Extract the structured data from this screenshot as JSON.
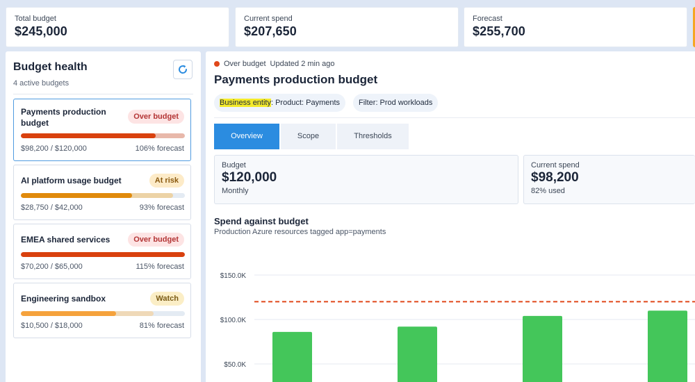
{
  "kpis": [
    {
      "label": "Total budget",
      "value": "$245,000"
    },
    {
      "label": "Current spend",
      "value": "$207,650"
    },
    {
      "label": "Forecast",
      "value": "$255,700"
    }
  ],
  "budget_health": {
    "title": "Budget health",
    "subtitle": "4 active budgets",
    "refresh_icon": "refresh-icon",
    "items": [
      {
        "name_line1": "Payments production",
        "name_line2": "budget",
        "badge": "Over budget",
        "badge_type": "over",
        "amount": "$98,200 / $120,000",
        "forecast": "106% forecast",
        "progress": 0.82,
        "forecast_progress": 1.0,
        "fill_color": "#d9410e",
        "forecast_color": "#e8b8aa"
      },
      {
        "name_line1": "AI platform usage budget",
        "name_line2": "",
        "badge": "At risk",
        "badge_type": "risk",
        "amount": "$28,750 / $42,000",
        "forecast": "93% forecast",
        "progress": 0.68,
        "forecast_progress": 0.93,
        "fill_color": "#e08a0c",
        "forecast_color": "#ecd3a6"
      },
      {
        "name_line1": "EMEA shared services",
        "name_line2": "",
        "badge": "Over budget",
        "badge_type": "over",
        "amount": "$70,200 / $65,000",
        "forecast": "115% forecast",
        "progress": 1.0,
        "forecast_progress": 1.0,
        "fill_color": "#d9410e",
        "forecast_color": "#e8b8aa"
      },
      {
        "name_line1": "Engineering sandbox",
        "name_line2": "",
        "badge": "Watch",
        "badge_type": "watch",
        "amount": "$10,500 / $18,000",
        "forecast": "81% forecast",
        "progress": 0.58,
        "forecast_progress": 0.81,
        "fill_color": "#f5a23c",
        "forecast_color": "#efd9b8"
      }
    ]
  },
  "detail": {
    "status": "Over budget",
    "updated": "Updated 2 min ago",
    "title": "Payments production budget",
    "chip1_key": "Business entity",
    "chip1_value": ": Product: Payments",
    "chip2": "Filter: Prod workloads",
    "tabs": [
      "Overview",
      "Scope",
      "Thresholds"
    ],
    "budget_card": {
      "label": "Budget",
      "value": "$120,000",
      "sub": "Monthly"
    },
    "spend_card": {
      "label": "Current spend",
      "value": "$98,200",
      "sub": "82% used"
    },
    "chart_title": "Spend against budget",
    "chart_subtitle": "Production Azure resources tagged app=payments"
  },
  "colors": {
    "accent": "#2b8ce0",
    "over": "#d9410e",
    "bar": "#44c65a",
    "threshold": "#e0481b"
  },
  "chart_data": {
    "type": "bar",
    "title": "Spend against budget",
    "subtitle": "Production Azure resources tagged app=payments",
    "y_tick_labels": [
      "$150.0K",
      "$100.0K",
      "$50.0K"
    ],
    "y_ticks": [
      150000,
      100000,
      50000
    ],
    "ylim_visible": [
      40000,
      155000
    ],
    "values": [
      86000,
      92000,
      104000,
      110000
    ],
    "threshold": 120000,
    "series": [
      {
        "name": "",
        "values": [
          86000,
          92000,
          104000,
          110000
        ]
      }
    ],
    "grid": true
  }
}
